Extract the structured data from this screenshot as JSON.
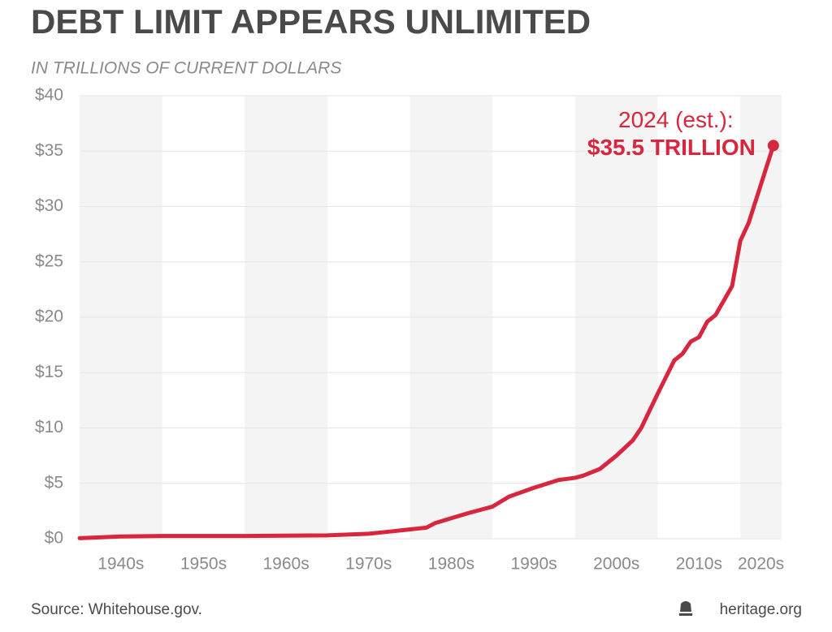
{
  "chart_data": {
    "type": "line",
    "title": "DEBT LIMIT APPEARS UNLIMITED",
    "subtitle": "IN TRILLIONS OF CURRENT DOLLARS",
    "x": [
      1940,
      1945,
      1950,
      1960,
      1970,
      1975,
      1977,
      1982,
      1983,
      1987,
      1990,
      1992,
      1995,
      1998,
      2000,
      2001,
      2003,
      2005,
      2007,
      2008,
      2010,
      2012,
      2013,
      2014,
      2015,
      2016,
      2017,
      2019,
      2020,
      2021,
      2024
    ],
    "values": [
      0.05,
      0.2,
      0.25,
      0.25,
      0.3,
      0.45,
      0.6,
      1.0,
      1.4,
      2.3,
      2.9,
      3.8,
      4.6,
      5.3,
      5.5,
      5.7,
      6.3,
      7.5,
      8.9,
      10.0,
      13.1,
      16.1,
      16.7,
      17.8,
      18.2,
      19.6,
      20.2,
      22.8,
      26.9,
      28.5,
      35.5
    ],
    "color": "#d7263d",
    "xlim": [
      1940,
      2025
    ],
    "xticks": [
      {
        "value": 1940,
        "label": "1940s"
      },
      {
        "value": 1950,
        "label": "1950s"
      },
      {
        "value": 1960,
        "label": "1960s"
      },
      {
        "value": 1970,
        "label": "1970s"
      },
      {
        "value": 1980,
        "label": "1980s"
      },
      {
        "value": 1990,
        "label": "1990s"
      },
      {
        "value": 2000,
        "label": "2000s"
      },
      {
        "value": 2010,
        "label": "2010s"
      },
      {
        "value": 2020,
        "label": "2020s"
      }
    ],
    "ylim": [
      0,
      40
    ],
    "yticks": [
      {
        "value": 0,
        "label": "$0"
      },
      {
        "value": 5,
        "label": "$5"
      },
      {
        "value": 10,
        "label": "$10"
      },
      {
        "value": 15,
        "label": "$15"
      },
      {
        "value": 20,
        "label": "$20"
      },
      {
        "value": 25,
        "label": "$25"
      },
      {
        "value": 30,
        "label": "$30"
      },
      {
        "value": 35,
        "label": "$35"
      },
      {
        "value": 40,
        "label": "$40"
      }
    ],
    "grid": true,
    "annotation": [
      "2024 (est.):",
      "$35.5 TRILLION"
    ],
    "source": "Source: Whitehouse.gov.",
    "credit": "heritage.org"
  }
}
